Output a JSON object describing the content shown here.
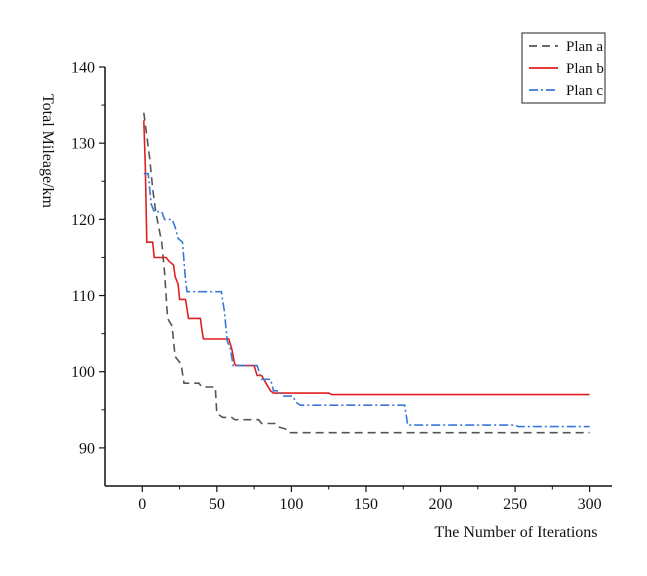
{
  "chart_data": {
    "type": "line",
    "title": "",
    "xlabel": "The Number of Iterations",
    "ylabel": "Total Mileage/km",
    "xlim": [
      -25,
      315
    ],
    "ylim": [
      85,
      140
    ],
    "xticks": [
      0,
      50,
      100,
      150,
      200,
      250,
      300
    ],
    "xticks_minor": [
      25,
      75,
      125,
      175,
      225,
      275
    ],
    "yticks": [
      90,
      100,
      110,
      120,
      130,
      140
    ],
    "yticks_minor": [
      95,
      105,
      115,
      125,
      135
    ],
    "grid": false,
    "legend_position": "top-right",
    "series": [
      {
        "name": "Plan a",
        "color": "#555555",
        "dash": "8,5",
        "points": [
          [
            1,
            134
          ],
          [
            3,
            131
          ],
          [
            5,
            128
          ],
          [
            7,
            124
          ],
          [
            9,
            121
          ],
          [
            11,
            119
          ],
          [
            13,
            117
          ],
          [
            15,
            113
          ],
          [
            16,
            110
          ],
          [
            17,
            107
          ],
          [
            20,
            106
          ],
          [
            22,
            102
          ],
          [
            26,
            101
          ],
          [
            28,
            98.5
          ],
          [
            38,
            98.5
          ],
          [
            40,
            98
          ],
          [
            49,
            98
          ],
          [
            50,
            94.5
          ],
          [
            54,
            94
          ],
          [
            60,
            94
          ],
          [
            62,
            93.7
          ],
          [
            78,
            93.7
          ],
          [
            80,
            93.2
          ],
          [
            90,
            93.2
          ],
          [
            92,
            92.7
          ],
          [
            96,
            92.5
          ],
          [
            98,
            92
          ],
          [
            300,
            92
          ]
        ]
      },
      {
        "name": "Plan b",
        "color": "#e02020",
        "dash": "",
        "points": [
          [
            1,
            133
          ],
          [
            2,
            127
          ],
          [
            3,
            117
          ],
          [
            7,
            117
          ],
          [
            8,
            115
          ],
          [
            16,
            115
          ],
          [
            18,
            114.5
          ],
          [
            21,
            114
          ],
          [
            22,
            112.5
          ],
          [
            24,
            111.5
          ],
          [
            25,
            109.5
          ],
          [
            29,
            109.5
          ],
          [
            31,
            107
          ],
          [
            39,
            107
          ],
          [
            40,
            105.5
          ],
          [
            41,
            104.3
          ],
          [
            58,
            104.3
          ],
          [
            60,
            103
          ],
          [
            62,
            101
          ],
          [
            63,
            100.8
          ],
          [
            75,
            100.8
          ],
          [
            77,
            99.5
          ],
          [
            80,
            99.5
          ],
          [
            83,
            98.5
          ],
          [
            86,
            97.5
          ],
          [
            88,
            97.2
          ],
          [
            125,
            97.2
          ],
          [
            127,
            97
          ],
          [
            300,
            97
          ]
        ]
      },
      {
        "name": "Plan c",
        "color": "#3a78d8",
        "dash": "9,3,2,3",
        "points": [
          [
            1,
            126
          ],
          [
            4,
            126
          ],
          [
            6,
            122
          ],
          [
            8,
            121
          ],
          [
            13,
            121
          ],
          [
            15,
            120
          ],
          [
            20,
            120
          ],
          [
            22,
            119
          ],
          [
            24,
            117.5
          ],
          [
            27,
            117
          ],
          [
            29,
            112
          ],
          [
            30,
            110.5
          ],
          [
            53,
            110.5
          ],
          [
            55,
            108
          ],
          [
            57,
            104
          ],
          [
            59,
            103
          ],
          [
            61,
            100.8
          ],
          [
            77,
            100.8
          ],
          [
            80,
            99
          ],
          [
            86,
            99
          ],
          [
            88,
            97.5
          ],
          [
            92,
            97.5
          ],
          [
            94,
            96.8
          ],
          [
            101,
            96.8
          ],
          [
            103,
            96
          ],
          [
            106,
            95.6
          ],
          [
            176,
            95.6
          ],
          [
            178,
            93
          ],
          [
            250,
            93
          ],
          [
            252,
            92.8
          ],
          [
            300,
            92.8
          ]
        ]
      }
    ]
  }
}
